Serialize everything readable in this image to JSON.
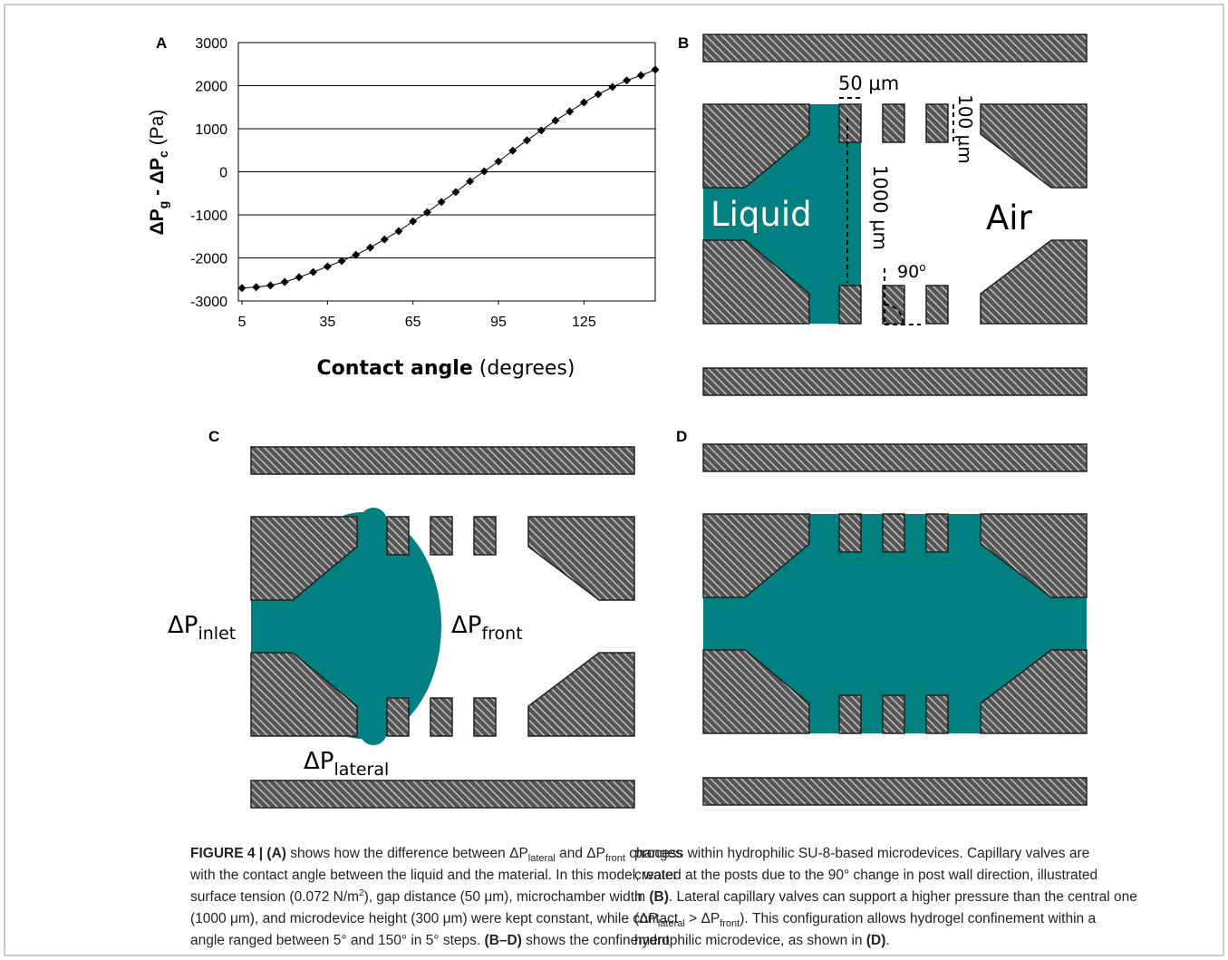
{
  "chart_data": {
    "type": "line",
    "panel_label": "A",
    "ylabel": [
      "ΔP",
      "g",
      " - ΔP",
      "c",
      " (Pa)"
    ],
    "xlabel": [
      "Contact angle",
      " (degrees)"
    ],
    "x": [
      5,
      10,
      15,
      20,
      25,
      30,
      35,
      40,
      45,
      50,
      55,
      60,
      65,
      70,
      75,
      80,
      85,
      90,
      95,
      100,
      105,
      110,
      115,
      120,
      125,
      130,
      135,
      140,
      145,
      150
    ],
    "values": [
      -2700,
      -2680,
      -2640,
      -2560,
      -2450,
      -2330,
      -2200,
      -2070,
      -1930,
      -1760,
      -1570,
      -1380,
      -1150,
      -940,
      -700,
      -470,
      -220,
      10,
      240,
      490,
      730,
      960,
      1190,
      1400,
      1610,
      1800,
      1970,
      2120,
      2240,
      2370
    ],
    "color": "#000000",
    "marker": "diamond",
    "xlim": [
      5,
      150
    ],
    "xticks": [
      5,
      35,
      65,
      95,
      125
    ],
    "ylim": [
      -3000,
      3000
    ],
    "yticks": [
      -3000,
      -2000,
      -1000,
      0,
      1000,
      2000,
      3000
    ],
    "grid": true
  },
  "panel_b": {
    "label": "B",
    "gap": "50 μm",
    "post": "100 μm",
    "width": "1000 μm",
    "liquid": "Liquid",
    "air": "Air",
    "angle": [
      "90",
      "o"
    ]
  },
  "panel_c": {
    "label": "C",
    "inlet": [
      "ΔP",
      "inlet"
    ],
    "front": [
      "ΔP",
      "front"
    ],
    "lateral": [
      "ΔP",
      "lateral"
    ]
  },
  "panel_d": {
    "label": "D"
  },
  "caption": {
    "left": [
      [
        {
          "b": "FIGURE 4 | (A)"
        },
        " shows how the difference between ΔP",
        {
          "sub": "lateral"
        },
        " and ΔP",
        {
          "sub": "front"
        },
        " changes"
      ],
      [
        "with the contact angle between the liquid and the material. In this model, water"
      ],
      [
        "surface tension (0.072 N/m",
        {
          "sup": "2"
        },
        "), gap distance (50 μm), microchamber width"
      ],
      [
        "(1000 μm), and microdevice height (300 μm) were kept constant, while contact"
      ],
      [
        "angle ranged between 5°  and 150°  in 5°  steps. ",
        {
          "b": "(B–D)"
        },
        " shows the confinement"
      ]
    ],
    "right": [
      [
        "process within hydrophilic SU-8-based microdevices. Capillary valves are"
      ],
      [
        "created at the posts due to the 90°  change in post wall direction, illustrated"
      ],
      [
        "in ",
        {
          "b": "(B)"
        },
        ". Lateral capillary valves can support a higher pressure than the central one"
      ],
      [
        "(ΔP",
        {
          "sub": "lateral"
        },
        " > ΔP",
        {
          "sub": "front"
        },
        "). This configuration allows hydrogel confinement within a"
      ],
      [
        "hydrophilic microdevice, as shown in ",
        {
          "b": "(D)"
        },
        "."
      ]
    ]
  }
}
